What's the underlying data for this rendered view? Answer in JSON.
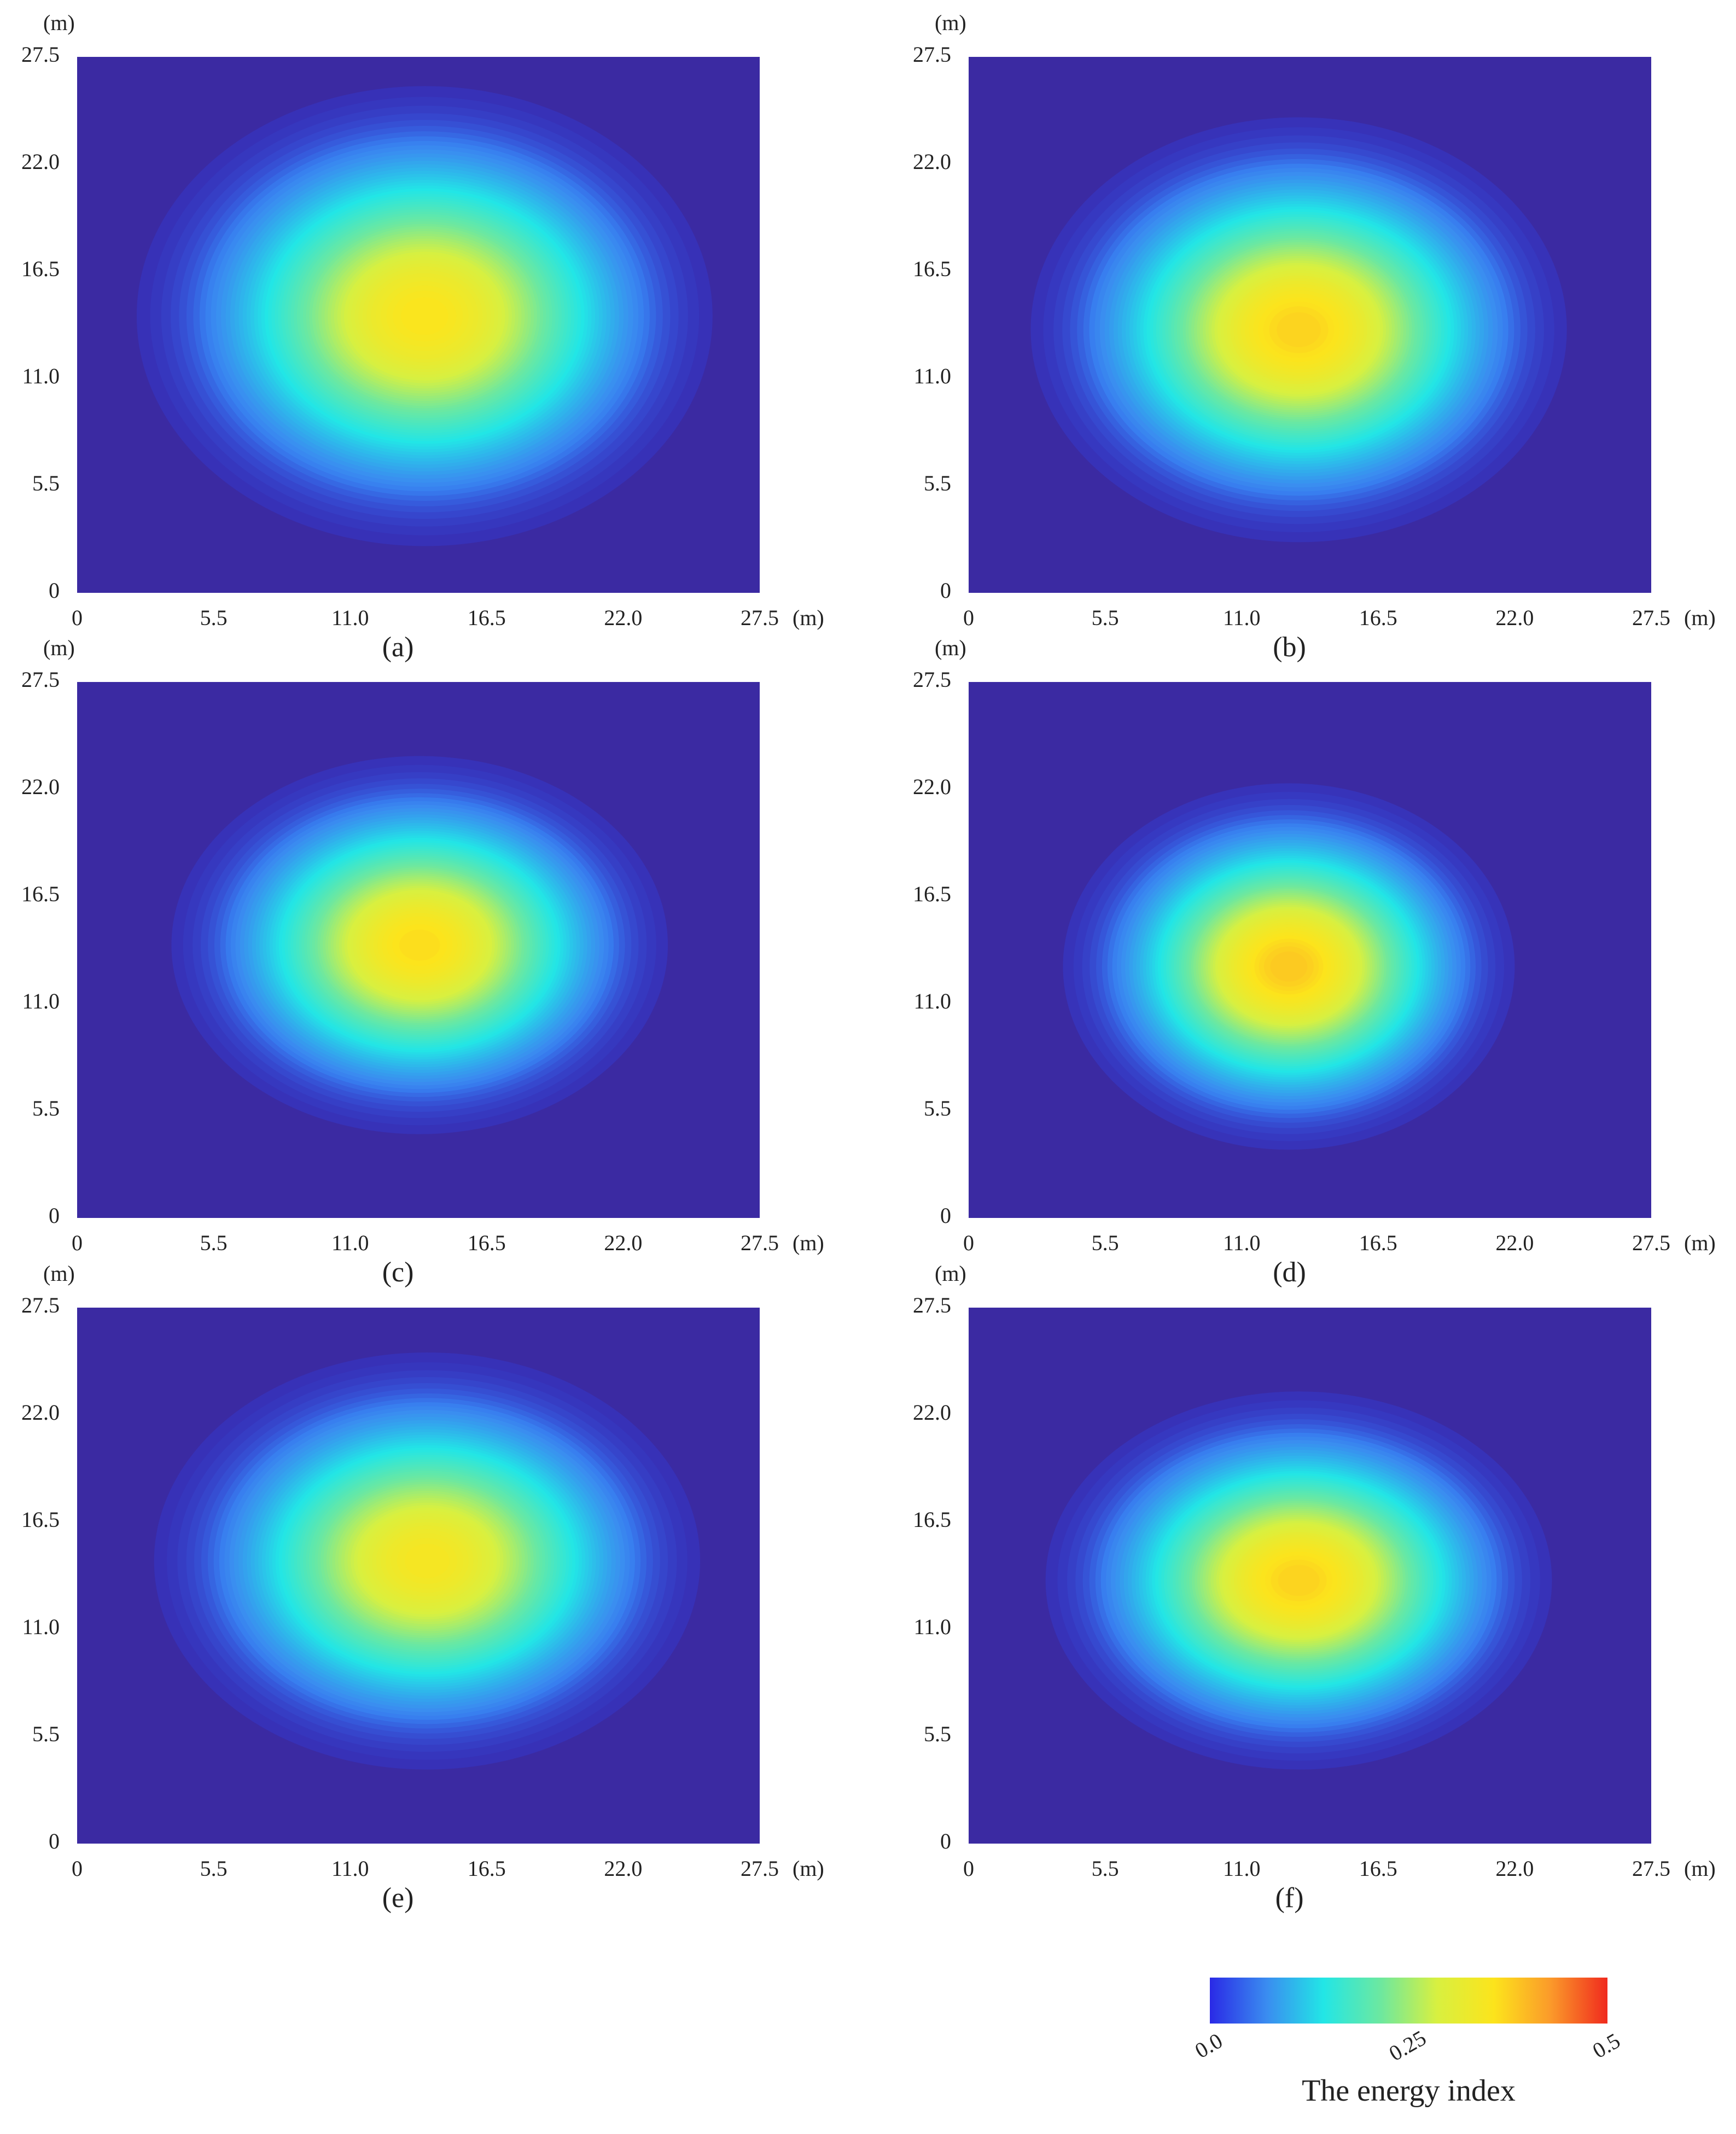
{
  "chart_data": [
    {
      "type": "heatmap",
      "subtitle": "(a)",
      "x_label": "(m)",
      "y_label": "(m)",
      "xlim": [
        0,
        27.5
      ],
      "ylim": [
        0,
        27.5
      ],
      "xticks": [
        0,
        5.5,
        {
          "value": 11,
          "label": "11.0"
        },
        16.5,
        {
          "value": 22,
          "label": "22.0"
        },
        27.5
      ],
      "yticks": [
        0,
        5.5,
        {
          "value": 11,
          "label": "11.0"
        },
        16.5,
        {
          "value": 22,
          "label": "22.0"
        },
        27.5
      ],
      "background": "#3b2aa2",
      "peak": {
        "x": 14.0,
        "y": 14.2,
        "value": 0.36,
        "radius_x": 11.6,
        "radius_y": 11.8
      }
    },
    {
      "type": "heatmap",
      "subtitle": "(b)",
      "x_label": "(m)",
      "y_label": "(m)",
      "xlim": [
        0,
        27.5
      ],
      "ylim": [
        0,
        27.5
      ],
      "xticks": [
        0,
        5.5,
        {
          "value": 11,
          "label": "11.0"
        },
        16.5,
        {
          "value": 22,
          "label": "22.0"
        },
        27.5
      ],
      "yticks": [
        0,
        5.5,
        {
          "value": 11,
          "label": "11.0"
        },
        16.5,
        {
          "value": 22,
          "label": "22.0"
        },
        27.5
      ],
      "background": "#3b2aa2",
      "peak": {
        "x": 13.3,
        "y": 13.5,
        "value": 0.38,
        "radius_x": 10.8,
        "radius_y": 10.9
      }
    },
    {
      "type": "heatmap",
      "subtitle": "(c)",
      "x_label": "(m)",
      "y_label": "(m)",
      "xlim": [
        0,
        27.5
      ],
      "ylim": [
        0,
        27.5
      ],
      "xticks": [
        0,
        5.5,
        {
          "value": 11,
          "label": "11.0"
        },
        16.5,
        {
          "value": 22,
          "label": "22.0"
        },
        27.5
      ],
      "yticks": [
        0,
        5.5,
        {
          "value": 11,
          "label": "11.0"
        },
        16.5,
        {
          "value": 22,
          "label": "22.0"
        },
        27.5
      ],
      "background": "#3b2aa2",
      "peak": {
        "x": 13.8,
        "y": 14.0,
        "value": 0.37,
        "radius_x": 10.0,
        "radius_y": 9.7
      }
    },
    {
      "type": "heatmap",
      "subtitle": "(d)",
      "x_label": "(m)",
      "y_label": "(m)",
      "xlim": [
        0,
        27.5
      ],
      "ylim": [
        0,
        27.5
      ],
      "xticks": [
        0,
        5.5,
        {
          "value": 11,
          "label": "11.0"
        },
        16.5,
        {
          "value": 22,
          "label": "22.0"
        },
        27.5
      ],
      "yticks": [
        0,
        5.5,
        {
          "value": 11,
          "label": "11.0"
        },
        16.5,
        {
          "value": 22,
          "label": "22.0"
        },
        27.5
      ],
      "background": "#3b2aa2",
      "peak": {
        "x": 12.9,
        "y": 12.9,
        "value": 0.39,
        "radius_x": 9.1,
        "radius_y": 9.4
      }
    },
    {
      "type": "heatmap",
      "subtitle": "(e)",
      "x_label": "(m)",
      "y_label": "(m)",
      "xlim": [
        0,
        27.5
      ],
      "ylim": [
        0,
        27.5
      ],
      "xticks": [
        0,
        5.5,
        {
          "value": 11,
          "label": "11.0"
        },
        16.5,
        {
          "value": 22,
          "label": "22.0"
        },
        27.5
      ],
      "yticks": [
        0,
        5.5,
        {
          "value": 11,
          "label": "11.0"
        },
        16.5,
        {
          "value": 22,
          "label": "22.0"
        },
        27.5
      ],
      "background": "#3b2aa2",
      "peak": {
        "x": 14.1,
        "y": 14.5,
        "value": 0.35,
        "radius_x": 11.0,
        "radius_y": 10.7
      }
    },
    {
      "type": "heatmap",
      "subtitle": "(f)",
      "x_label": "(m)",
      "y_label": "(m)",
      "xlim": [
        0,
        27.5
      ],
      "ylim": [
        0,
        27.5
      ],
      "xticks": [
        0,
        5.5,
        {
          "value": 11,
          "label": "11.0"
        },
        16.5,
        {
          "value": 22,
          "label": "22.0"
        },
        27.5
      ],
      "yticks": [
        0,
        5.5,
        {
          "value": 11,
          "label": "11.0"
        },
        16.5,
        {
          "value": 22,
          "label": "22.0"
        },
        27.5
      ],
      "background": "#3b2aa2",
      "peak": {
        "x": 13.3,
        "y": 13.5,
        "value": 0.38,
        "radius_x": 10.2,
        "radius_y": 9.7
      }
    }
  ],
  "colorbar": {
    "title": "The energy index",
    "lim": [
      0,
      0.5
    ],
    "ticks": [
      {
        "value": 0,
        "label": "0.0"
      },
      0.25,
      0.5
    ],
    "colors": [
      "#2a2ae6",
      "#3a8cf0",
      "#22e6e6",
      "#6ce8a0",
      "#d8f040",
      "#fce41c",
      "#fb9a2a",
      "#f02a1e"
    ]
  }
}
